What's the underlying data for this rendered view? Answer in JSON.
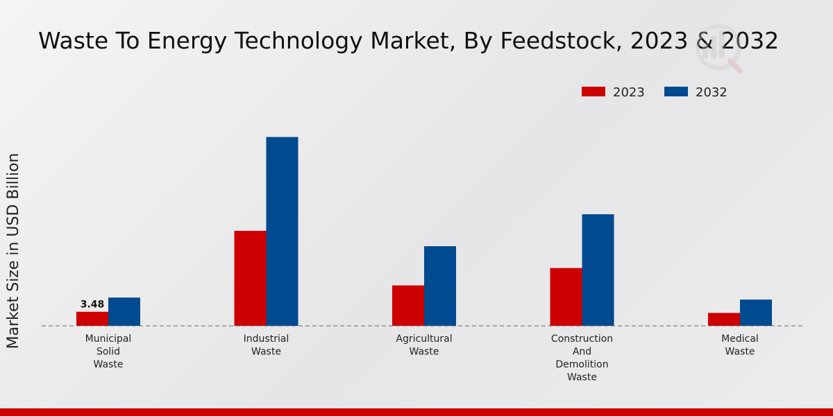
{
  "chart_data": {
    "type": "bar",
    "title": "Waste To Energy Technology Market, By Feedstock, 2023 & 2032",
    "xlabel": "",
    "ylabel": "Market Size in USD Billion",
    "categories": [
      [
        "Municipal",
        "Solid",
        "Waste"
      ],
      [
        "Industrial",
        "Waste"
      ],
      [
        "Agricultural",
        "Waste"
      ],
      [
        "Construction",
        "And",
        "Demolition",
        "Waste"
      ],
      [
        "Medical",
        "Waste"
      ]
    ],
    "series": [
      {
        "name": "2023",
        "color": "#cc0000",
        "values": [
          3.48,
          23.5,
          10.0,
          14.3,
          3.2
        ]
      },
      {
        "name": "2032",
        "color": "#004a8f",
        "values": [
          7.0,
          46.7,
          19.7,
          27.6,
          6.5
        ]
      }
    ],
    "data_labels": [
      {
        "series": 0,
        "index": 0,
        "text": "3.48"
      }
    ],
    "ylim": [
      0,
      60
    ],
    "grid": false,
    "legend_position": "top-right"
  }
}
